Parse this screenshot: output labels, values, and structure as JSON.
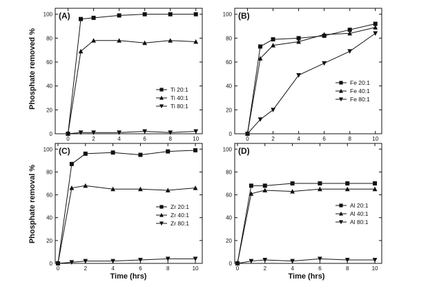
{
  "figure": {
    "ylabel_top": "Phosphate removed %",
    "ylabel_bottom": "Phosphate removal %",
    "xlabel": "Time (hrs)"
  },
  "chart_data": [
    {
      "type": "line",
      "panel": "(A)",
      "x": [
        0,
        1,
        2,
        4,
        6,
        8,
        10
      ],
      "xlim": [
        -1,
        10.5
      ],
      "ylim": [
        0,
        105
      ],
      "xticks": [
        0,
        2,
        4,
        6,
        8,
        10
      ],
      "yticks": [
        0,
        20,
        40,
        60,
        80,
        100
      ],
      "legend_position": "center-right",
      "series": [
        {
          "name": "Ti 20:1",
          "marker": "square",
          "values": [
            0,
            96,
            97,
            99,
            100,
            100,
            100
          ]
        },
        {
          "name": "Ti 40:1",
          "marker": "triangle-up",
          "values": [
            0,
            69,
            78,
            78,
            76,
            78,
            77
          ]
        },
        {
          "name": "Ti 80:1",
          "marker": "triangle-down",
          "values": [
            0,
            1,
            1,
            1,
            2,
            1,
            2
          ]
        }
      ]
    },
    {
      "type": "line",
      "panel": "(B)",
      "x": [
        0,
        1,
        2,
        4,
        6,
        8,
        10
      ],
      "xlim": [
        -1,
        10.5
      ],
      "ylim": [
        0,
        105
      ],
      "xticks": [
        0,
        2,
        4,
        6,
        8,
        10
      ],
      "yticks": [
        0,
        20,
        40,
        60,
        80,
        100
      ],
      "legend_position": "center-right",
      "series": [
        {
          "name": "Fe 20:1",
          "marker": "square",
          "values": [
            0,
            73,
            79,
            80,
            82,
            87,
            92
          ]
        },
        {
          "name": "Fe 40:1",
          "marker": "triangle-up",
          "values": [
            0,
            63,
            74,
            77,
            83,
            84,
            89
          ]
        },
        {
          "name": "Fe 80:1",
          "marker": "triangle-down",
          "values": [
            0,
            12,
            20,
            49,
            59,
            69,
            84
          ]
        }
      ]
    },
    {
      "type": "line",
      "panel": "(C)",
      "x": [
        0,
        1,
        2,
        4,
        6,
        8,
        10
      ],
      "xlim": [
        -0.2,
        10.5
      ],
      "ylim": [
        0,
        105
      ],
      "xticks": [
        0,
        2,
        4,
        6,
        8,
        10
      ],
      "yticks": [
        0,
        20,
        40,
        60,
        80,
        100
      ],
      "legend_position": "center-right",
      "series": [
        {
          "name": "Zr 20:1",
          "marker": "square",
          "values": [
            0,
            87,
            96,
            97,
            95,
            98,
            99
          ]
        },
        {
          "name": "Zr 40:1",
          "marker": "triangle-up",
          "values": [
            0,
            66,
            68,
            65,
            65,
            64,
            66
          ]
        },
        {
          "name": "Zr 80:1",
          "marker": "triangle-down",
          "values": [
            0,
            1,
            2,
            2,
            3,
            4,
            4
          ]
        }
      ]
    },
    {
      "type": "line",
      "panel": "(D)",
      "x": [
        0,
        1,
        2,
        4,
        6,
        8,
        10
      ],
      "xlim": [
        -0.2,
        10.5
      ],
      "ylim": [
        0,
        105
      ],
      "xticks": [
        0,
        2,
        4,
        6,
        8,
        10
      ],
      "yticks": [
        0,
        20,
        40,
        60,
        80,
        100
      ],
      "legend_position": "center-right",
      "series": [
        {
          "name": "Al 20:1",
          "marker": "square",
          "values": [
            0,
            68,
            68,
            70,
            70,
            70,
            70
          ]
        },
        {
          "name": "Al 40:1",
          "marker": "triangle-up",
          "values": [
            0,
            61,
            64,
            63,
            65,
            65,
            65
          ]
        },
        {
          "name": "Al 80:1",
          "marker": "triangle-down",
          "values": [
            0,
            2,
            3,
            2,
            4,
            3,
            3
          ]
        }
      ]
    }
  ]
}
